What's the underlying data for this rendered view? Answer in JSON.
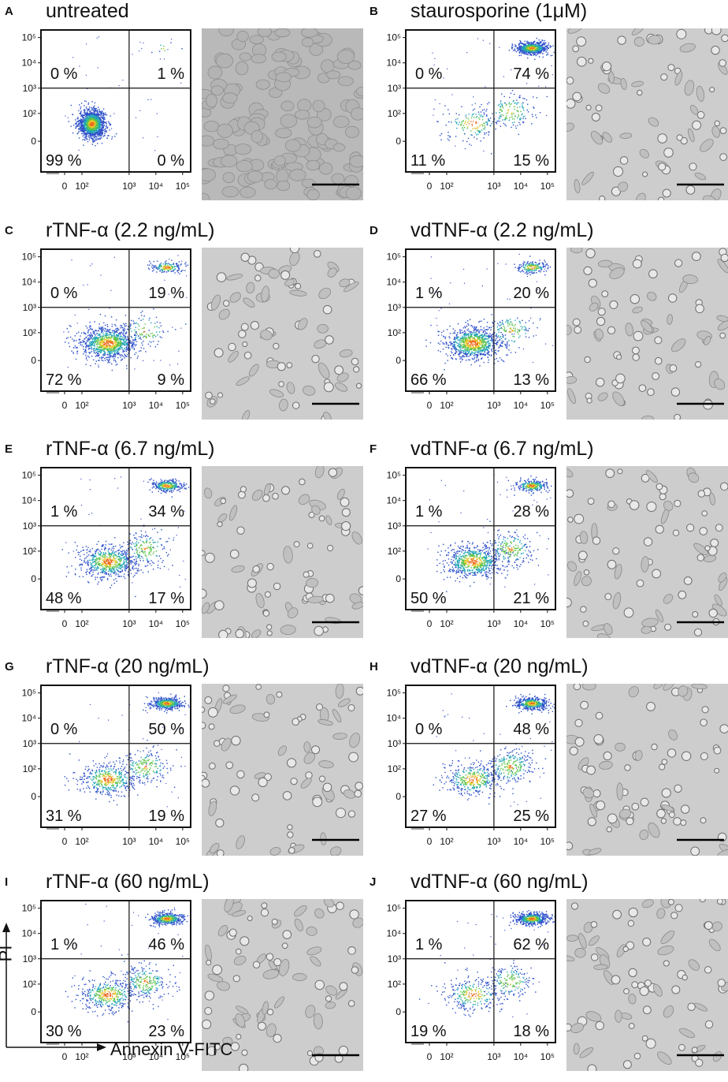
{
  "panels": [
    {
      "letter": "A",
      "title": "untreated",
      "quadrants": {
        "ul": "0 %",
        "ur": "1 %",
        "ll": "99 %",
        "lr": "0 %"
      }
    },
    {
      "letter": "B",
      "title": "staurosporine (1μM)",
      "quadrants": {
        "ul": "0 %",
        "ur": "74 %",
        "ll": "11 %",
        "lr": "15 %"
      }
    },
    {
      "letter": "C",
      "title": "rTNF-α (2.2 ng/mL)",
      "quadrants": {
        "ul": "0 %",
        "ur": "19 %",
        "ll": "72 %",
        "lr": "9 %"
      }
    },
    {
      "letter": "D",
      "title": "vdTNF-α (2.2 ng/mL)",
      "quadrants": {
        "ul": "1 %",
        "ur": "20 %",
        "ll": "66 %",
        "lr": "13 %"
      }
    },
    {
      "letter": "E",
      "title": "rTNF-α (6.7 ng/mL)",
      "quadrants": {
        "ul": "1 %",
        "ur": "34 %",
        "ll": "48 %",
        "lr": "17 %"
      }
    },
    {
      "letter": "F",
      "title": "vdTNF-α (6.7 ng/mL)",
      "quadrants": {
        "ul": "1 %",
        "ur": "28 %",
        "ll": "50 %",
        "lr": "21 %"
      }
    },
    {
      "letter": "G",
      "title": "rTNF-α (20 ng/mL)",
      "quadrants": {
        "ul": "0 %",
        "ur": "50 %",
        "ll": "31 %",
        "lr": "19 %"
      }
    },
    {
      "letter": "H",
      "title": "vdTNF-α (20 ng/mL)",
      "quadrants": {
        "ul": "0 %",
        "ur": "48 %",
        "ll": "27 %",
        "lr": "25 %"
      }
    },
    {
      "letter": "I",
      "title": "rTNF-α (60 ng/mL)",
      "quadrants": {
        "ul": "1 %",
        "ur": "46 %",
        "ll": "30 %",
        "lr": "23 %"
      }
    },
    {
      "letter": "J",
      "title": "vdTNF-α (60 ng/mL)",
      "quadrants": {
        "ul": "1 %",
        "ur": "62 %",
        "ll": "19 %",
        "lr": "18 %"
      }
    }
  ],
  "axes": {
    "x_label": "Annexin V-FITC",
    "y_label": "PI"
  },
  "ticks": {
    "x": [
      "0",
      "10²",
      "10³",
      "10⁴",
      "10⁵"
    ],
    "y": [
      "10⁵",
      "10⁴",
      "10³",
      "10²",
      "0"
    ]
  },
  "chart_data": {
    "type": "scatter",
    "subtype": "flow-cytometry quadrant plots",
    "xlabel": "Annexin V-FITC",
    "ylabel": "PI",
    "xscale": "log",
    "yscale": "log",
    "x_ticks": [
      "0",
      "10²",
      "10³",
      "10⁴",
      "10⁵"
    ],
    "y_ticks": [
      "0",
      "10²",
      "10³",
      "10⁴",
      "10⁵"
    ],
    "quadrant_gate": {
      "x": 1000,
      "y": 1000
    },
    "panels": [
      {
        "name": "untreated",
        "ll": 99,
        "lr": 0,
        "ul": 0,
        "ur": 1
      },
      {
        "name": "staurosporine (1μM)",
        "ll": 11,
        "lr": 15,
        "ul": 0,
        "ur": 74
      },
      {
        "name": "rTNF-α (2.2 ng/mL)",
        "ll": 72,
        "lr": 9,
        "ul": 0,
        "ur": 19
      },
      {
        "name": "vdTNF-α (2.2 ng/mL)",
        "ll": 66,
        "lr": 13,
        "ul": 1,
        "ur": 20
      },
      {
        "name": "rTNF-α (6.7 ng/mL)",
        "ll": 48,
        "lr": 17,
        "ul": 1,
        "ur": 34
      },
      {
        "name": "vdTNF-α (6.7 ng/mL)",
        "ll": 50,
        "lr": 21,
        "ul": 1,
        "ur": 28
      },
      {
        "name": "rTNF-α (20 ng/mL)",
        "ll": 31,
        "lr": 19,
        "ul": 0,
        "ur": 50
      },
      {
        "name": "vdTNF-α (20 ng/mL)",
        "ll": 27,
        "lr": 25,
        "ul": 0,
        "ur": 48
      },
      {
        "name": "rTNF-α (60 ng/mL)",
        "ll": 30,
        "lr": 23,
        "ul": 1,
        "ur": 46
      },
      {
        "name": "vdTNF-α (60 ng/mL)",
        "ll": 19,
        "lr": 18,
        "ul": 1,
        "ur": 62
      }
    ]
  }
}
